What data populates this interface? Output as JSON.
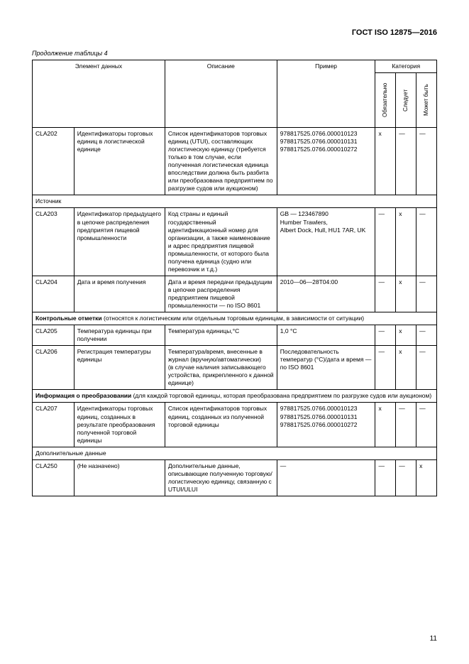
{
  "doc_header": "ГОСТ ISO 12875—2016",
  "continuation": "Продолжение таблицы 4",
  "headers": {
    "element": "Элемент данных",
    "description": "Описание",
    "example": "Пример",
    "category": "Категория",
    "mandatory": "Обязательно",
    "should": "Следует",
    "maybe": "Может быть"
  },
  "rows": {
    "cla202": {
      "code": "CLA202",
      "elem": "Идентификаторы торговых единиц в логистической единице",
      "desc": "Список идентификаторов торговых единиц (UTUI), составляющих логистическую единицу (требуется только в том случае, если полученная логистическая единица впоследствии должна быть разбита или преобразована предприятием по разгрузке судов или аукционом)",
      "ex": "978817525.0766.000010123 978817525.0766.000010131 978817525.0766.000010272",
      "c1": "x",
      "c2": "—",
      "c3": "—"
    },
    "sec_source": "Источник",
    "cla203": {
      "code": "CLA203",
      "elem": "Идентификатор предыдущего в цепочке распределения предприятия пищевой промышленности",
      "desc": "Код страны и единый государственный идентификационный номер для организации, а также наименование и адрес предприятия пищевой промышленности, от которого была получена единица (судно или перевозчик и т.д.)",
      "ex": "GB — 123467890\nHumber Trawlers,\nAlbert Dock, Hull, HU1 7AR, UK",
      "c1": "—",
      "c2": "x",
      "c3": "—"
    },
    "cla204": {
      "code": "CLA204",
      "elem": "Дата и время получения",
      "desc": "Дата и время передачи предыдущим в цепочке распределения предприятием пищевой промышленности — по ISO 8601",
      "ex": "2010—06—28T04:00",
      "c1": "—",
      "c2": "x",
      "c3": "—"
    },
    "sec_control": "Контрольные отметки (относятся к логистическим или отдельным торговым единицам, в зависимости от ситуации)",
    "cla205": {
      "code": "CLA205",
      "elem": "Температура единицы при получении",
      "desc": "Температура единицы,°C",
      "ex": "1,0 °C",
      "c1": "—",
      "c2": "x",
      "c3": "—"
    },
    "cla206": {
      "code": "CLA206",
      "elem": "Регистрация температуры единицы",
      "desc": "Температура/время, внесенные в журнал (вручную/автоматически)\n(в случае наличия записывающего устройства, прикрепленного к данной единице)",
      "ex": "Последовательность температур (°C)/дата и время — по ISO 8601",
      "c1": "—",
      "c2": "x",
      "c3": "—"
    },
    "sec_transform": "Информация о преобразовании (для каждой торговой единицы, которая преобразована предприятием по разгрузке судов или аукционом)",
    "cla207": {
      "code": "CLA207",
      "elem": "Идентификаторы торговых единиц, созданных в результате преобразования полученной торговой единицы",
      "desc": "Список идентификаторов торговых единиц, созданных из полученной торговой единицы",
      "ex": "978817525.0766.000010123 978817525.0766.000010131 978817525.0766.000010272",
      "c1": "x",
      "c2": "—",
      "c3": "—"
    },
    "sec_additional": "Дополнительные данные",
    "cla250": {
      "code": "CLA250",
      "elem": "(Не назначено)",
      "desc": "Дополнительные данные, описывающие полученную торговую/логистическую единицу, связанную с UTUI/ULUI",
      "ex": "—",
      "c1": "—",
      "c2": "—",
      "c3": "x"
    }
  },
  "page_number": "11"
}
